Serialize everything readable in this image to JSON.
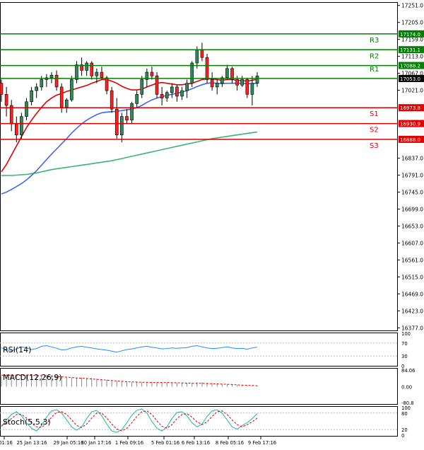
{
  "chart_data": {
    "type": "candlestick",
    "symbol": "",
    "price_axis": {
      "labels": [
        "17251.0",
        "17205.0",
        "17159.0",
        "17113.0",
        "17067.0",
        "17021.0",
        "16837.0",
        "16791.0",
        "16745.0",
        "16699.0",
        "16653.0",
        "16607.0",
        "16561.0",
        "16515.0",
        "16469.0",
        "16423.0",
        "16377.0"
      ],
      "range": [
        16370,
        17260
      ]
    },
    "time_axis": {
      "labels": [
        "01:16",
        "25 Jan 13:16",
        "29 Jan 05:16",
        "30 Jan 17:16",
        "1 Feb 09:16",
        "5 Feb 01:16",
        "6 Feb 13:16",
        "8 Feb 05:16",
        "9 Feb 17:16"
      ]
    },
    "current_price": "17053.0",
    "levels": [
      {
        "name": "R3",
        "value": 17131.1,
        "label": "17131.1",
        "color": "#008000"
      },
      {
        "name": "R2",
        "value": 17088.2,
        "label": "17088.2",
        "color": "#008000"
      },
      {
        "name": "R1",
        "value": 17053.0,
        "label": "17053.0",
        "color": "#008000"
      },
      {
        "name": "S1",
        "value": 16973.8,
        "label": "16973.8",
        "color": "#e00000"
      },
      {
        "name": "S2",
        "value": 16930.9,
        "label": "16930.9",
        "color": "#e00000"
      },
      {
        "name": "S3",
        "value": 16888.0,
        "label": "16888.0",
        "color": "#e00000"
      }
    ],
    "extra_line": {
      "value": 17174.0,
      "label": "17174.0",
      "color": "#008000"
    },
    "candles": [
      [
        17040,
        17050,
        16990,
        17010
      ],
      [
        17010,
        17030,
        16950,
        16980
      ],
      [
        16980,
        16995,
        16910,
        16930
      ],
      [
        16930,
        16950,
        16880,
        16900
      ],
      [
        16900,
        16960,
        16890,
        16950
      ],
      [
        16950,
        17000,
        16940,
        16990
      ],
      [
        16990,
        17030,
        16980,
        17020
      ],
      [
        17020,
        17040,
        17000,
        17030
      ],
      [
        17030,
        17060,
        17020,
        17050
      ],
      [
        17050,
        17065,
        17030,
        17055
      ],
      [
        17055,
        17070,
        17040,
        17062
      ],
      [
        17062,
        17075,
        17020,
        17030
      ],
      [
        17030,
        17040,
        16960,
        16975
      ],
      [
        16975,
        17000,
        16960,
        16995
      ],
      [
        16995,
        17060,
        16990,
        17050
      ],
      [
        17050,
        17100,
        17040,
        17090
      ],
      [
        17090,
        17110,
        17060,
        17075
      ],
      [
        17075,
        17100,
        17060,
        17095
      ],
      [
        17095,
        17100,
        17050,
        17060
      ],
      [
        17060,
        17080,
        17040,
        17070
      ],
      [
        17070,
        17085,
        17050,
        17055
      ],
      [
        17055,
        17060,
        17010,
        17020
      ],
      [
        17020,
        17030,
        16960,
        16970
      ],
      [
        16970,
        17000,
        16890,
        16900
      ],
      [
        16900,
        16960,
        16880,
        16950
      ],
      [
        16950,
        16970,
        16930,
        16940
      ],
      [
        16940,
        16990,
        16930,
        16985
      ],
      [
        16985,
        17020,
        16975,
        17010
      ],
      [
        17010,
        17060,
        17000,
        17050
      ],
      [
        17050,
        17080,
        17030,
        17070
      ],
      [
        17070,
        17085,
        17050,
        17060
      ],
      [
        17060,
        17070,
        17000,
        17010
      ],
      [
        17010,
        17030,
        16980,
        17000
      ],
      [
        17000,
        17020,
        16990,
        17015
      ],
      [
        17015,
        17040,
        17000,
        17030
      ],
      [
        17030,
        17035,
        16990,
        17005
      ],
      [
        17005,
        17030,
        16995,
        17020
      ],
      [
        17020,
        17050,
        17000,
        17040
      ],
      [
        17040,
        17100,
        17030,
        17095
      ],
      [
        17095,
        17140,
        17080,
        17130
      ],
      [
        17130,
        17150,
        17100,
        17110
      ],
      [
        17110,
        17120,
        17040,
        17050
      ],
      [
        17050,
        17070,
        17020,
        17030
      ],
      [
        17030,
        17050,
        17010,
        17040
      ],
      [
        17040,
        17060,
        17030,
        17055
      ],
      [
        17055,
        17090,
        17050,
        17080
      ],
      [
        17080,
        17085,
        17040,
        17050
      ],
      [
        17050,
        17060,
        17020,
        17035
      ],
      [
        17035,
        17060,
        17030,
        17050
      ],
      [
        17050,
        17055,
        17000,
        17010
      ],
      [
        17010,
        17060,
        16980,
        17040
      ],
      [
        17040,
        17070,
        17030,
        17060
      ]
    ],
    "ma_red": [
      16800,
      16820,
      16845,
      16870,
      16895,
      16920,
      16940,
      16958,
      16975,
      16990,
      17000,
      17008,
      17012,
      17018,
      17022,
      17026,
      17030,
      17034,
      17040,
      17045,
      17050,
      17050,
      17046,
      17040,
      17032,
      17026,
      17022,
      17022,
      17024,
      17030,
      17035,
      17040,
      17042,
      17040,
      17038,
      17036,
      17036,
      17038,
      17040,
      17045,
      17050,
      17052,
      17052,
      17050,
      17048,
      17050,
      17050,
      17048,
      17047,
      17046,
      17048,
      17051
    ],
    "ma_blue": [
      16740,
      16745,
      16752,
      16760,
      16768,
      16778,
      16790,
      16803,
      16818,
      16833,
      16848,
      16862,
      16876,
      16890,
      16905,
      16918,
      16930,
      16940,
      16948,
      16955,
      16960,
      16962,
      16963,
      16964,
      16966,
      16968,
      16970,
      16974,
      16980,
      16988,
      16995,
      17000,
      17004,
      17007,
      17010,
      17013,
      17016,
      17020,
      17025,
      17031,
      17036,
      17040,
      17041,
      17040,
      17039,
      17040,
      17040,
      17040,
      17040,
      17039,
      17039,
      17040
    ],
    "ma_green": [
      16790,
      16790,
      16790,
      16791,
      16792,
      16793,
      16795,
      16797,
      16800,
      16803,
      16806,
      16808,
      16810,
      16812,
      16814,
      16816,
      16818,
      16820,
      16822,
      16824,
      16826,
      16828,
      16830,
      16833,
      16836,
      16839,
      16842,
      16845,
      16848,
      16851,
      16854,
      16857,
      16860,
      16863,
      16866,
      16869,
      16872,
      16875,
      16878,
      16881,
      16884,
      16887,
      16890,
      16892,
      16894,
      16896,
      16898,
      16900,
      16902,
      16904,
      16906,
      16908
    ],
    "rsi": {
      "label": "RSI(14)",
      "ticks": [
        "100",
        "70",
        "30",
        "0"
      ],
      "values": [
        55,
        50,
        45,
        52,
        58,
        55,
        50,
        53,
        60,
        62,
        58,
        54,
        49,
        50,
        55,
        58,
        60,
        57,
        55,
        52,
        50,
        48,
        45,
        42,
        46,
        50,
        52,
        55,
        58,
        60,
        57,
        55,
        52,
        53,
        55,
        54,
        55,
        56,
        60,
        62,
        58,
        55,
        53,
        54,
        56,
        58,
        55,
        53,
        54,
        51,
        55,
        57
      ]
    },
    "macd": {
      "label": "MACD(12,26,9)",
      "ticks": [
        "84.06",
        "0.00",
        "-80.8"
      ],
      "range": [
        -84,
        84
      ],
      "histogram": [
        52,
        55,
        56,
        58,
        60,
        62,
        63,
        62,
        61,
        60,
        58,
        56,
        52,
        48,
        46,
        45,
        45,
        44,
        43,
        40,
        38,
        35,
        32,
        28,
        26,
        24,
        22,
        22,
        22,
        23,
        24,
        24,
        23,
        21,
        20,
        19,
        18,
        18,
        20,
        22,
        22,
        20,
        18,
        15,
        13,
        12,
        10,
        8,
        6,
        5,
        4,
        5
      ],
      "signal": [
        58,
        58,
        58,
        58,
        57,
        57,
        56,
        56,
        55,
        54,
        53,
        52,
        50,
        48,
        46,
        44,
        43,
        41,
        39,
        37,
        35,
        33,
        31,
        29,
        27,
        25,
        24,
        23,
        22,
        22,
        21,
        21,
        21,
        21,
        20,
        20,
        19,
        18,
        17,
        17,
        17,
        16,
        15,
        14,
        13,
        12,
        11,
        9,
        8,
        7,
        6,
        5
      ]
    },
    "stoch": {
      "label": "Stoch(5,5,3)",
      "ticks": [
        "100",
        "80",
        "20",
        "0"
      ],
      "main": [
        30,
        55,
        75,
        85,
        70,
        45,
        25,
        15,
        35,
        65,
        88,
        92,
        80,
        55,
        30,
        18,
        30,
        60,
        85,
        90,
        70,
        40,
        15,
        10,
        20,
        45,
        72,
        90,
        95,
        80,
        50,
        25,
        15,
        30,
        60,
        82,
        85,
        70,
        45,
        30,
        40,
        68,
        88,
        92,
        80,
        55,
        30,
        22,
        35,
        45,
        60,
        78
      ],
      "signal": [
        35,
        45,
        60,
        75,
        75,
        62,
        45,
        30,
        28,
        42,
        65,
        82,
        85,
        75,
        55,
        35,
        28,
        40,
        62,
        80,
        80,
        62,
        40,
        22,
        15,
        25,
        45,
        68,
        85,
        88,
        75,
        52,
        32,
        25,
        38,
        60,
        75,
        78,
        65,
        48,
        38,
        48,
        68,
        85,
        88,
        75,
        55,
        38,
        30,
        38,
        48,
        62
      ]
    }
  }
}
